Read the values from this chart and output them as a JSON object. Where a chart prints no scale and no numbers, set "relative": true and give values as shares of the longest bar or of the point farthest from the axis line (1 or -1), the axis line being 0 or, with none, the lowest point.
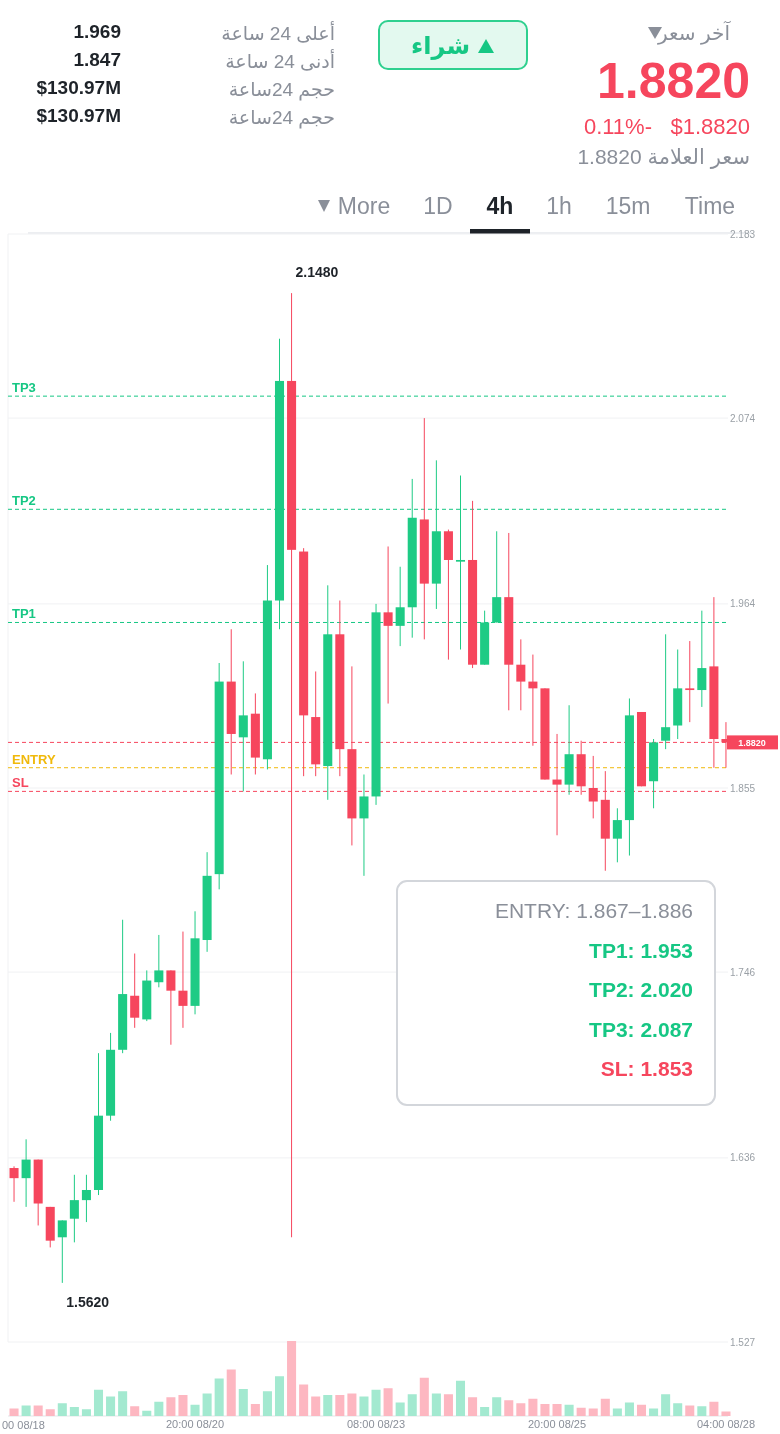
{
  "chart_data": [
    {
      "type": "other",
      "annotations": [
        "آخر سعر",
        "1.8820",
        "$1.8820",
        "0.11%-",
        "سعر العلامة 1.8820",
        "شراء",
        "أعلى 24 ساعة",
        "1.969",
        "أدنى 24 ساعة",
        "1.847",
        "حجم 24ساعة",
        "$130.97M",
        "حجم 24ساعة",
        "$130.97M",
        "More",
        "1D",
        "4h",
        "1h",
        "15m",
        "Time"
      ]
    },
    {
      "type": "candlestick",
      "grid": "y",
      "ylim": [
        1.527,
        2.183
      ],
      "yticks": [
        1.527,
        1.636,
        1.746,
        1.855,
        1.964,
        2.074,
        2.183
      ],
      "categories": [
        null,
        null,
        null,
        null,
        null,
        null,
        null,
        null,
        null,
        null,
        null,
        null,
        null,
        null,
        null,
        "20:00 08/20",
        null,
        null,
        null,
        null,
        null,
        null,
        null,
        null,
        null,
        null,
        null,
        null,
        null,
        null,
        "08:00 08/23",
        null,
        null,
        null,
        null,
        null,
        null,
        null,
        null,
        null,
        null,
        null,
        null,
        null,
        null,
        "20:00 08/25",
        null,
        null,
        null,
        null,
        null,
        null,
        null,
        null,
        null,
        null,
        null,
        null,
        null,
        "04:00 08/28"
      ],
      "ohlc": [
        [
          1.63,
          1.631,
          1.61,
          1.624
        ],
        [
          1.624,
          1.647,
          1.607,
          1.635
        ],
        [
          1.635,
          1.635,
          1.596,
          1.609
        ],
        [
          1.607,
          1.607,
          1.583,
          1.587
        ],
        [
          1.589,
          1.599,
          1.562,
          1.599
        ],
        [
          1.6,
          1.626,
          1.586,
          1.611
        ],
        [
          1.611,
          1.626,
          1.598,
          1.617
        ],
        [
          1.617,
          1.698,
          1.614,
          1.661
        ],
        [
          1.661,
          1.71,
          1.658,
          1.7
        ],
        [
          1.7,
          1.777,
          1.698,
          1.733
        ],
        [
          1.732,
          1.757,
          1.713,
          1.719
        ],
        [
          1.718,
          1.747,
          1.717,
          1.741
        ],
        [
          1.74,
          1.768,
          1.737,
          1.747
        ],
        [
          1.747,
          1.747,
          1.703,
          1.735
        ],
        [
          1.735,
          1.77,
          1.713,
          1.726
        ],
        [
          1.726,
          1.782,
          1.721,
          1.766
        ],
        [
          1.765,
          1.817,
          1.758,
          1.803
        ],
        [
          1.804,
          1.929,
          1.795,
          1.918
        ],
        [
          1.918,
          1.949,
          1.863,
          1.887
        ],
        [
          1.885,
          1.93,
          1.853,
          1.898
        ],
        [
          1.899,
          1.911,
          1.863,
          1.873
        ],
        [
          1.872,
          1.987,
          1.866,
          1.966
        ],
        [
          1.966,
          2.121,
          1.949,
          2.096
        ],
        [
          2.096,
          2.148,
          1.589,
          1.996
        ],
        [
          1.995,
          1.997,
          1.862,
          1.898
        ],
        [
          1.897,
          1.924,
          1.862,
          1.869
        ],
        [
          1.868,
          1.975,
          1.848,
          1.946
        ],
        [
          1.946,
          1.966,
          1.862,
          1.878
        ],
        [
          1.878,
          1.927,
          1.821,
          1.837
        ],
        [
          1.837,
          1.863,
          1.803,
          1.85
        ],
        [
          1.85,
          1.964,
          1.845,
          1.959
        ],
        [
          1.959,
          1.998,
          1.905,
          1.951
        ],
        [
          1.951,
          1.986,
          1.939,
          1.962
        ],
        [
          1.962,
          2.038,
          1.944,
          2.015
        ],
        [
          2.014,
          2.074,
          1.943,
          1.976
        ],
        [
          1.976,
          2.049,
          1.961,
          2.007
        ],
        [
          2.007,
          2.008,
          1.931,
          1.99
        ],
        [
          1.989,
          2.04,
          1.937,
          1.99
        ],
        [
          1.99,
          2.025,
          1.926,
          1.928
        ],
        [
          1.928,
          1.96,
          1.928,
          1.953
        ],
        [
          1.953,
          2.007,
          1.953,
          1.968
        ],
        [
          1.968,
          2.006,
          1.901,
          1.928
        ],
        [
          1.928,
          1.943,
          1.901,
          1.918
        ],
        [
          1.918,
          1.934,
          1.88,
          1.914
        ],
        [
          1.914,
          1.914,
          1.86,
          1.86
        ],
        [
          1.86,
          1.887,
          1.827,
          1.857
        ],
        [
          1.857,
          1.904,
          1.851,
          1.875
        ],
        [
          1.875,
          1.883,
          1.851,
          1.856
        ],
        [
          1.855,
          1.874,
          1.837,
          1.847
        ],
        [
          1.848,
          1.865,
          1.806,
          1.825
        ],
        [
          1.825,
          1.843,
          1.811,
          1.836
        ],
        [
          1.836,
          1.908,
          1.815,
          1.898
        ],
        [
          1.9,
          1.9,
          1.856,
          1.856
        ],
        [
          1.859,
          1.884,
          1.843,
          1.882
        ],
        [
          1.883,
          1.946,
          1.878,
          1.891
        ],
        [
          1.892,
          1.937,
          1.884,
          1.914
        ],
        [
          1.914,
          1.942,
          1.894,
          1.913
        ],
        [
          1.913,
          1.96,
          1.903,
          1.926
        ],
        [
          1.927,
          1.968,
          1.867,
          1.884
        ],
        [
          1.884,
          1.894,
          1.867,
          1.882
        ]
      ],
      "colors": [
        "#f6465d",
        "#1ecb85",
        "#f6465d",
        "#f6465d",
        "#1ecb85",
        "#1ecb85",
        "#1ecb85",
        "#1ecb85",
        "#1ecb85",
        "#1ecb85",
        "#f6465d",
        "#1ecb85",
        "#1ecb85",
        "#f6465d",
        "#f6465d",
        "#1ecb85",
        "#1ecb85",
        "#1ecb85",
        "#f6465d",
        "#1ecb85",
        "#f6465d",
        "#1ecb85",
        "#1ecb85",
        "#f6465d",
        "#f6465d",
        "#f6465d",
        "#1ecb85",
        "#f6465d",
        "#f6465d",
        "#1ecb85",
        "#1ecb85",
        "#f6465d",
        "#1ecb85",
        "#1ecb85",
        "#f6465d",
        "#1ecb85",
        "#f6465d",
        "#1ecb85",
        "#f6465d",
        "#1ecb85",
        "#1ecb85",
        "#f6465d",
        "#f6465d",
        "#f6465d",
        "#f6465d",
        "#f6465d",
        "#1ecb85",
        "#f6465d",
        "#f6465d",
        "#f6465d",
        "#1ecb85",
        "#1ecb85",
        "#f6465d",
        "#1ecb85",
        "#1ecb85",
        "#1ecb85",
        "#f6465d",
        "#1ecb85",
        "#f6465d",
        "#f6465d"
      ],
      "ref_lines": [
        {
          "axis": "y",
          "value": 2.087,
          "label": "TP3",
          "color": "#16c784",
          "line_style": "dashed"
        },
        {
          "axis": "y",
          "value": 2.02,
          "label": "TP2",
          "color": "#16c784",
          "line_style": "dashed"
        },
        {
          "axis": "y",
          "value": 1.953,
          "label": "TP1",
          "color": "#16c784",
          "line_style": "dashed"
        },
        {
          "axis": "y",
          "value": 1.882,
          "label": "1.8820",
          "color": "#f6465d",
          "line_style": "dashed"
        },
        {
          "axis": "y",
          "value": 1.867,
          "label": "ENTRY",
          "color": "#f0b90b",
          "line_style": "dashed"
        },
        {
          "axis": "y",
          "value": 1.853,
          "label": "SL",
          "color": "#f6465d",
          "line_style": "dashed"
        }
      ],
      "annotations": [
        "2.1480",
        "1.5620",
        "ENTRY: 1.867–1.886",
        "TP1: 1.953",
        "TP2: 2.020",
        "TP3: 2.087",
        "SL: 1.853"
      ]
    },
    {
      "type": "bar",
      "relative": true,
      "categories": [
        null,
        null,
        null,
        null,
        null,
        null,
        null,
        null,
        null,
        null,
        null,
        null,
        null,
        null,
        null,
        null,
        null,
        null,
        null,
        null,
        null,
        null,
        null,
        null,
        null,
        null,
        null,
        null,
        null,
        null,
        null,
        null,
        null,
        null,
        null,
        null,
        null,
        null,
        null,
        null,
        null,
        null,
        null,
        null,
        null,
        null,
        null,
        null,
        null,
        null,
        null,
        null,
        null,
        null,
        null,
        null,
        null,
        null,
        null,
        null
      ],
      "values": [
        0.1,
        0.14,
        0.14,
        0.09,
        0.17,
        0.12,
        0.09,
        0.35,
        0.26,
        0.33,
        0.13,
        0.07,
        0.19,
        0.25,
        0.28,
        0.15,
        0.3,
        0.5,
        0.62,
        0.36,
        0.16,
        0.33,
        0.53,
        1,
        0.42,
        0.26,
        0.28,
        0.28,
        0.3,
        0.26,
        0.35,
        0.37,
        0.18,
        0.29,
        0.51,
        0.3,
        0.29,
        0.47,
        0.25,
        0.12,
        0.25,
        0.21,
        0.17,
        0.23,
        0.16,
        0.16,
        0.15,
        0.11,
        0.1,
        0.23,
        0.1,
        0.18,
        0.15,
        0.1,
        0.29,
        0.17,
        0.14,
        0.13,
        0.19,
        0.06
      ],
      "colors": [
        "#fdb7c1",
        "#a3e9d0",
        "#fdb7c1",
        "#fdb7c1",
        "#a3e9d0",
        "#a3e9d0",
        "#a3e9d0",
        "#a3e9d0",
        "#a3e9d0",
        "#a3e9d0",
        "#fdb7c1",
        "#a3e9d0",
        "#a3e9d0",
        "#fdb7c1",
        "#fdb7c1",
        "#a3e9d0",
        "#a3e9d0",
        "#a3e9d0",
        "#fdb7c1",
        "#a3e9d0",
        "#fdb7c1",
        "#a3e9d0",
        "#a3e9d0",
        "#fdb7c1",
        "#fdb7c1",
        "#fdb7c1",
        "#a3e9d0",
        "#fdb7c1",
        "#fdb7c1",
        "#a3e9d0",
        "#a3e9d0",
        "#fdb7c1",
        "#a3e9d0",
        "#a3e9d0",
        "#fdb7c1",
        "#a3e9d0",
        "#fdb7c1",
        "#a3e9d0",
        "#fdb7c1",
        "#a3e9d0",
        "#a3e9d0",
        "#fdb7c1",
        "#fdb7c1",
        "#fdb7c1",
        "#fdb7c1",
        "#fdb7c1",
        "#a3e9d0",
        "#fdb7c1",
        "#fdb7c1",
        "#fdb7c1",
        "#a3e9d0",
        "#a3e9d0",
        "#fdb7c1",
        "#a3e9d0",
        "#a3e9d0",
        "#a3e9d0",
        "#fdb7c1",
        "#a3e9d0",
        "#fdb7c1",
        "#fdb7c1"
      ],
      "annotations": [
        "00 08/18"
      ]
    }
  ]
}
